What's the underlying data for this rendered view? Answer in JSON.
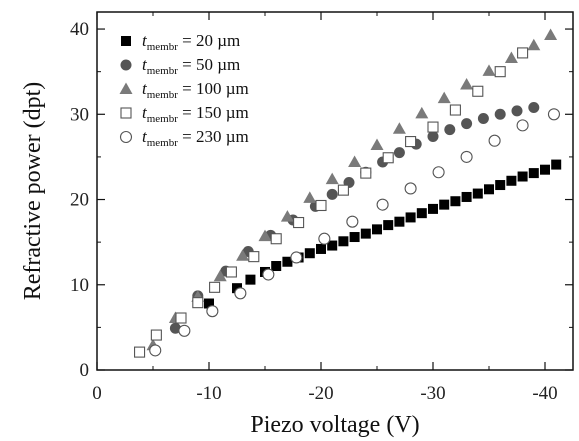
{
  "chart_data": {
    "type": "scatter",
    "title": "",
    "xlabel": "Piezo voltage (V)",
    "ylabel": "Refractive power (dpt)",
    "xlim": [
      0,
      -42.5
    ],
    "ylim": [
      0,
      42
    ],
    "x_ticks": [
      0,
      -10,
      -20,
      -30,
      -40
    ],
    "x_tick_labels": [
      "0",
      "-10",
      "-20",
      "-30",
      "-40"
    ],
    "y_ticks": [
      0,
      10,
      20,
      30,
      40
    ],
    "y_tick_labels": [
      "0",
      "10",
      "20",
      "30",
      "40"
    ],
    "x_minor_step": -5,
    "y_minor_step": 5,
    "legend_position": "top-left",
    "series": [
      {
        "symbol_var": "t",
        "symbol_sub": "membr",
        "value_text": " = 20 µm",
        "marker": "square-filled",
        "color": "#000000",
        "x": [
          -10,
          -12.5,
          -13.7,
          -15,
          -16,
          -17,
          -18,
          -19,
          -20,
          -21,
          -22,
          -23,
          -24,
          -25,
          -26,
          -27,
          -28,
          -29,
          -30,
          -31,
          -32,
          -33,
          -34,
          -35,
          -36,
          -37,
          -38,
          -39,
          -40,
          -41
        ],
        "y": [
          7.8,
          9.6,
          10.6,
          11.5,
          12.2,
          12.7,
          13.2,
          13.7,
          14.2,
          14.6,
          15.1,
          15.6,
          16.0,
          16.5,
          17.0,
          17.4,
          17.9,
          18.4,
          18.9,
          19.4,
          19.8,
          20.3,
          20.7,
          21.2,
          21.7,
          22.2,
          22.7,
          23.1,
          23.5,
          24.1
        ]
      },
      {
        "symbol_var": "t",
        "symbol_sub": "membr",
        "value_text": " = 50 µm",
        "marker": "circle-filled",
        "color": "#555555",
        "x": [
          -7,
          -9,
          -11.5,
          -13.5,
          -15.5,
          -17.5,
          -19.5,
          -21,
          -22.5,
          -24,
          -25.5,
          -27,
          -28.5,
          -30,
          -31.5,
          -33,
          -34.5,
          -36,
          -37.5,
          -39
        ],
        "y": [
          4.9,
          8.7,
          11.6,
          13.9,
          15.8,
          17.6,
          19.2,
          20.6,
          22.0,
          23.2,
          24.4,
          25.5,
          26.5,
          27.4,
          28.2,
          28.9,
          29.5,
          30.0,
          30.4,
          30.8
        ]
      },
      {
        "symbol_var": "t",
        "symbol_sub": "membr",
        "value_text": " = 100 µm",
        "marker": "triangle-filled",
        "color": "#7a7a7a",
        "x": [
          -5,
          -7,
          -9,
          -11,
          -13,
          -15,
          -17,
          -19,
          -21,
          -23,
          -25,
          -27,
          -29,
          -31,
          -33,
          -35,
          -37,
          -39,
          -40.5
        ],
        "y": [
          2.9,
          6.1,
          8.6,
          11.0,
          13.4,
          15.7,
          18.0,
          20.2,
          22.4,
          24.4,
          26.4,
          28.3,
          30.1,
          31.9,
          33.5,
          35.1,
          36.6,
          38.1,
          39.3
        ]
      },
      {
        "symbol_var": "t",
        "symbol_sub": "membr",
        "value_text": " = 150 µm",
        "marker": "square-open",
        "color": "#555555",
        "x": [
          -3.8,
          -5.3,
          -7.5,
          -9,
          -10.5,
          -12,
          -14,
          -16,
          -18,
          -20,
          -22,
          -24,
          -26,
          -28,
          -30,
          -32,
          -34,
          -36,
          -38
        ],
        "y": [
          2.1,
          4.1,
          6.1,
          7.9,
          9.7,
          11.5,
          13.3,
          15.4,
          17.3,
          19.3,
          21.1,
          23.1,
          24.9,
          26.8,
          28.5,
          30.5,
          32.7,
          35.0,
          37.2
        ]
      },
      {
        "symbol_var": "t",
        "symbol_sub": "membr",
        "value_text": " = 230 µm",
        "marker": "circle-open",
        "color": "#555555",
        "x": [
          -5.2,
          -7.8,
          -10.3,
          -12.8,
          -15.3,
          -17.8,
          -20.3,
          -22.8,
          -25.5,
          -28,
          -30.5,
          -33,
          -35.5,
          -38,
          -40.8
        ],
        "y": [
          2.3,
          4.6,
          6.9,
          9.0,
          11.2,
          13.2,
          15.4,
          17.4,
          19.4,
          21.3,
          23.2,
          25.0,
          26.9,
          28.7,
          30.0
        ]
      }
    ]
  }
}
